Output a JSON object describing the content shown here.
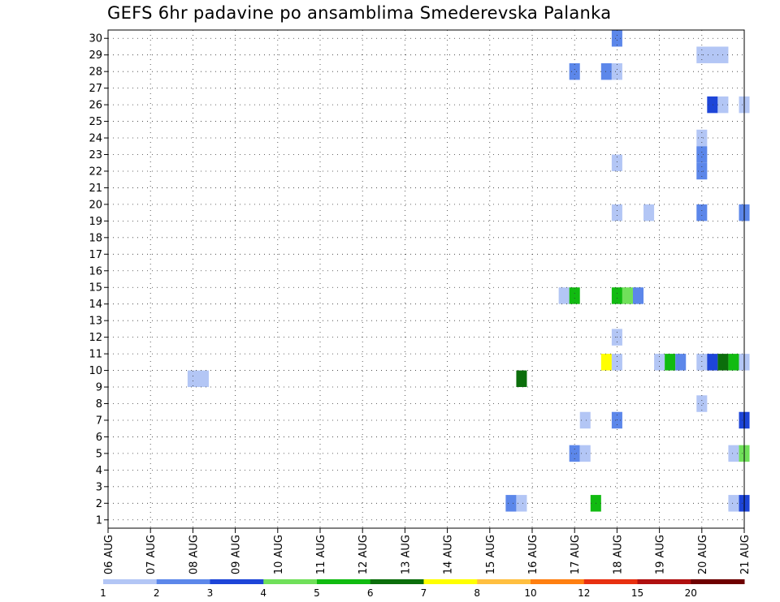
{
  "chart_data": {
    "type": "heatmap",
    "title": "GEFS 6hr padavine po ansamblima Smederevska Palanka",
    "xlabel": "",
    "ylabel": "",
    "x_ticks": [
      "06 AUG",
      "07 AUG",
      "08 AUG",
      "09 AUG",
      "10 AUG",
      "11 AUG",
      "12 AUG",
      "13 AUG",
      "14 AUG",
      "15 AUG",
      "16 AUG",
      "17 AUG",
      "18 AUG",
      "19 AUG",
      "20 AUG",
      "21 AUG"
    ],
    "y_ticks": [
      "1",
      "2",
      "3",
      "4",
      "5",
      "6",
      "7",
      "8",
      "9",
      "10",
      "11",
      "12",
      "13",
      "14",
      "15",
      "16",
      "17",
      "18",
      "19",
      "20",
      "21",
      "22",
      "23",
      "24",
      "25",
      "26",
      "27",
      "28",
      "29",
      "30"
    ],
    "x_range_days": [
      0,
      15
    ],
    "y_range_members": [
      0.5,
      30.5
    ],
    "grid": true,
    "legend": "bottom",
    "colorbar": {
      "labels": [
        "1",
        "2",
        "3",
        "4",
        "5",
        "6",
        "7",
        "8",
        "10",
        "12",
        "15",
        "20"
      ],
      "colors": [
        "#b3c6f5",
        "#5c87ea",
        "#1d45d8",
        "#70e05a",
        "#11bb11",
        "#0b6e0b",
        "#ffff00",
        "#ffbf40",
        "#ff7f10",
        "#e83010",
        "#b01010",
        "#6e0000"
      ]
    },
    "cells": [
      {
        "day": 2.0,
        "member": 9.5,
        "value": 1.5,
        "width_steps": 2
      },
      {
        "day": 9.75,
        "member": 9.5,
        "value": 6.5
      },
      {
        "day": 9.5,
        "member": 2,
        "value": 2.5
      },
      {
        "day": 9.75,
        "member": 2,
        "value": 1.5
      },
      {
        "day": 10.75,
        "member": 14.5,
        "value": 1.5
      },
      {
        "day": 11.0,
        "member": 14.5,
        "value": 5.5
      },
      {
        "day": 11.0,
        "member": 28,
        "value": 2.5
      },
      {
        "day": 11.0,
        "member": 5,
        "value": 2.5
      },
      {
        "day": 11.25,
        "member": 5,
        "value": 1.5
      },
      {
        "day": 11.25,
        "member": 7,
        "value": 1.5
      },
      {
        "day": 11.5,
        "member": 2,
        "value": 5.5
      },
      {
        "day": 11.75,
        "member": 10.5,
        "value": 7.5
      },
      {
        "day": 11.75,
        "member": 28,
        "value": 2.5
      },
      {
        "day": 12.0,
        "member": 30,
        "value": 2.5
      },
      {
        "day": 12.0,
        "member": 28,
        "value": 1.5
      },
      {
        "day": 12.0,
        "member": 22.5,
        "value": 1.5
      },
      {
        "day": 12.0,
        "member": 19.5,
        "value": 1.5
      },
      {
        "day": 12.0,
        "member": 14.5,
        "value": 5.5
      },
      {
        "day": 12.25,
        "member": 14.5,
        "value": 4.5
      },
      {
        "day": 12.5,
        "member": 14.5,
        "value": 2.5
      },
      {
        "day": 12.0,
        "member": 12,
        "value": 1.5
      },
      {
        "day": 12.0,
        "member": 10.5,
        "value": 1.5
      },
      {
        "day": 12.0,
        "member": 7,
        "value": 2.5
      },
      {
        "day": 12.75,
        "member": 19.5,
        "value": 1.5
      },
      {
        "day": 13.0,
        "member": 10.5,
        "value": 1.5
      },
      {
        "day": 13.25,
        "member": 10.5,
        "value": 5.5
      },
      {
        "day": 13.5,
        "member": 10.5,
        "value": 2.5
      },
      {
        "day": 14.0,
        "member": 29,
        "value": 1.5,
        "width_steps": 3
      },
      {
        "day": 14.0,
        "member": 24,
        "value": 1.5
      },
      {
        "day": 14.0,
        "member": 23,
        "value": 2.5
      },
      {
        "day": 14.0,
        "member": 22,
        "value": 2.5
      },
      {
        "day": 14.0,
        "member": 19.5,
        "value": 2.5
      },
      {
        "day": 14.0,
        "member": 10.5,
        "value": 1.5
      },
      {
        "day": 14.25,
        "member": 10.5,
        "value": 3.5
      },
      {
        "day": 14.5,
        "member": 10.5,
        "value": 6.5
      },
      {
        "day": 14.75,
        "member": 10.5,
        "value": 5.5
      },
      {
        "day": 15.0,
        "member": 10.5,
        "value": 1.5
      },
      {
        "day": 14.0,
        "member": 8,
        "value": 1.5
      },
      {
        "day": 14.25,
        "member": 26,
        "value": 3.5
      },
      {
        "day": 14.5,
        "member": 26,
        "value": 1.5
      },
      {
        "day": 15.0,
        "member": 26,
        "value": 1.5
      },
      {
        "day": 15.0,
        "member": 19.5,
        "value": 2.5
      },
      {
        "day": 15.0,
        "member": 7,
        "value": 3.5
      },
      {
        "day": 14.75,
        "member": 5,
        "value": 1.5
      },
      {
        "day": 15.0,
        "member": 5,
        "value": 4.5
      },
      {
        "day": 14.75,
        "member": 2,
        "value": 1.5
      },
      {
        "day": 15.0,
        "member": 2,
        "value": 3.5
      }
    ]
  }
}
